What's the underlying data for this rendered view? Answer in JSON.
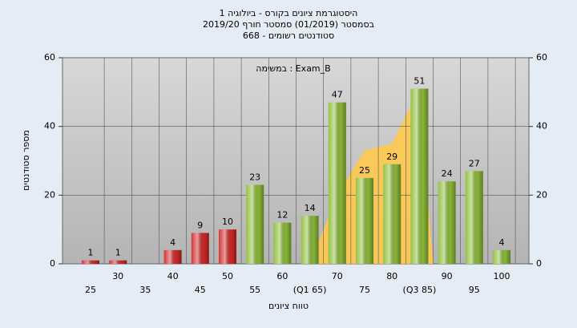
{
  "chart_data": {
    "type": "bar",
    "title": "היסטוגרמת ציונים בקורס - ביולוגיה 1",
    "subtitle": "בסמסטר (01/2019) סמסטר חורף 2019/20",
    "subtitle2": "סטודנטים רשומים - 668",
    "annotation": "במשימה : Exam_B",
    "y_label": "מספר סטודנטים",
    "x_label": "טווח ציונים",
    "categories": [
      "25",
      "30",
      "35",
      "40",
      "45",
      "50",
      "55",
      "60",
      "(Q1 65)",
      "70",
      "75",
      "80",
      "(Q3 85)",
      "90",
      "95",
      "100"
    ],
    "values": [
      1,
      1,
      null,
      4,
      9,
      10,
      23,
      12,
      14,
      47,
      25,
      29,
      51,
      24,
      27,
      4
    ],
    "colors": [
      "#d42a2a",
      "#d42a2a",
      "#d42a2a",
      "#d42a2a",
      "#d42a2a",
      "#d42a2a",
      "#8fbf3a",
      "#8fbf3a",
      "#8fbf3a",
      "#8fbf3a",
      "#8fbf3a",
      "#8fbf3a",
      "#8fbf3a",
      "#8fbf3a",
      "#8fbf3a",
      "#8fbf3a"
    ],
    "area": {
      "color": "#ffc94d",
      "values": [
        null,
        null,
        null,
        null,
        null,
        null,
        null,
        null,
        0,
        20,
        33,
        35,
        51,
        null,
        null,
        null
      ]
    },
    "ylim": [
      0,
      60
    ],
    "yticks": [
      0,
      20,
      40,
      60
    ],
    "grid": true
  }
}
